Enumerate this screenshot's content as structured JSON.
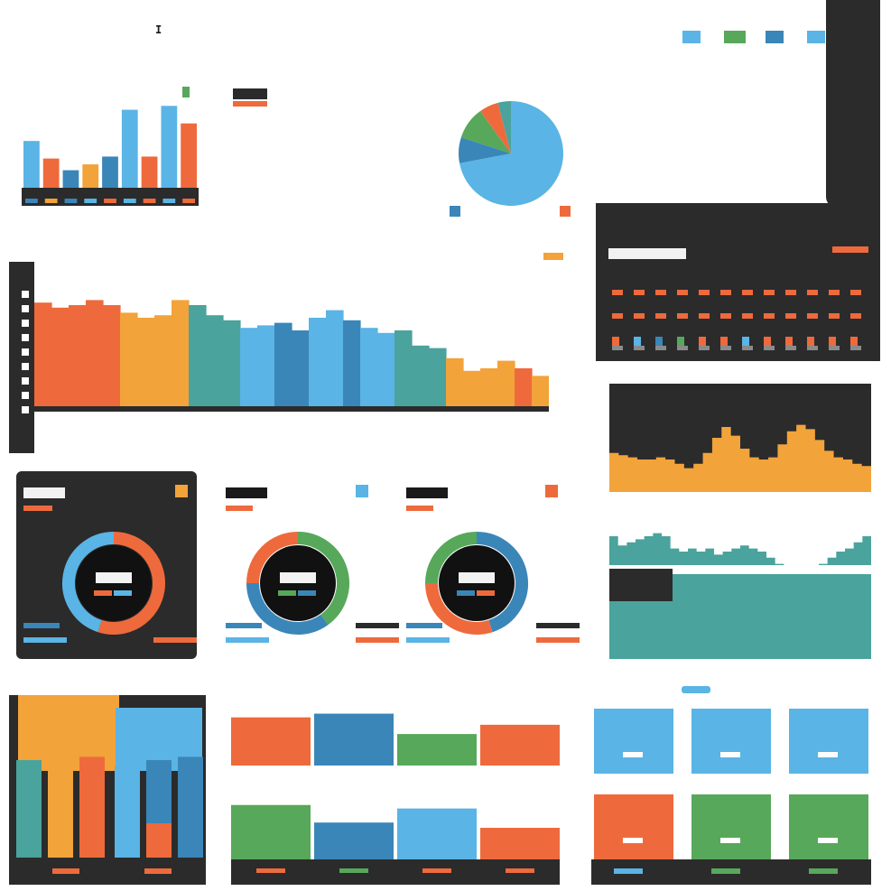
{
  "colors": {
    "blue": "#5ab4e5",
    "orange": "#ee6a3c",
    "green": "#57a85a",
    "amber": "#f2a33a",
    "teal": "#4aa39c",
    "navy": "#3a86b8",
    "dark": "#2b2b2b",
    "gray": "#8a8a8a"
  },
  "header": {
    "marker": "I",
    "legend_swatches": [
      "#5ab4e5",
      "#57a85a",
      "#3a86b8",
      "#5ab4e5",
      "#5ab4e5"
    ]
  },
  "chart_data": [
    {
      "id": "top-bars",
      "type": "bar",
      "title": "",
      "values": [
        48,
        30,
        18,
        24,
        32,
        80,
        32,
        84,
        66
      ],
      "colors": [
        "#5ab4e5",
        "#ee6a3c",
        "#3a86b8",
        "#f2a33a",
        "#3a86b8",
        "#5ab4e5",
        "#ee6a3c",
        "#5ab4e5",
        "#ee6a3c"
      ],
      "ylim": [
        0,
        100
      ]
    },
    {
      "id": "top-pie",
      "type": "pie",
      "title": "",
      "values": [
        72,
        8,
        10,
        6,
        4
      ],
      "colors": [
        "#5ab4e5",
        "#3a86b8",
        "#57a85a",
        "#ee6a3c",
        "#4aa39c"
      ]
    },
    {
      "id": "wide-area",
      "type": "bar",
      "title": "",
      "values": [
        82,
        78,
        80,
        84,
        80,
        74,
        70,
        72,
        84,
        80,
        72,
        68,
        62,
        64,
        66,
        60,
        70,
        76,
        68,
        62,
        58,
        60,
        48,
        46,
        38,
        28,
        30,
        36,
        30,
        24
      ],
      "colors": [
        "#ee6a3c",
        "#ee6a3c",
        "#ee6a3c",
        "#ee6a3c",
        "#ee6a3c",
        "#f2a33a",
        "#f2a33a",
        "#f2a33a",
        "#f2a33a",
        "#4aa39c",
        "#4aa39c",
        "#4aa39c",
        "#5ab4e5",
        "#5ab4e5",
        "#3a86b8",
        "#3a86b8",
        "#5ab4e5",
        "#5ab4e5",
        "#3a86b8",
        "#5ab4e5",
        "#5ab4e5",
        "#4aa39c",
        "#4aa39c",
        "#4aa39c",
        "#f2a33a",
        "#f2a33a",
        "#f2a33a",
        "#f2a33a",
        "#ee6a3c",
        "#f2a33a"
      ],
      "ylim": [
        0,
        100
      ]
    },
    {
      "id": "right-dots",
      "type": "scatter",
      "title": "",
      "rows": [
        [
          "#ee6a3c",
          "#ee6a3c",
          "#ee6a3c",
          "#ee6a3c",
          "#ee6a3c",
          "#ee6a3c",
          "#ee6a3c",
          "#ee6a3c",
          "#ee6a3c",
          "#ee6a3c",
          "#ee6a3c",
          "#ee6a3c"
        ],
        [
          "#ee6a3c",
          "#ee6a3c",
          "#ee6a3c",
          "#ee6a3c",
          "#ee6a3c",
          "#ee6a3c",
          "#ee6a3c",
          "#ee6a3c",
          "#ee6a3c",
          "#ee6a3c",
          "#ee6a3c",
          "#ee6a3c"
        ],
        [
          "#ee6a3c",
          "#5ab4e5",
          "#3a86b8",
          "#57a85a",
          "#ee6a3c",
          "#ee6a3c",
          "#5ab4e5",
          "#ee6a3c",
          "#ee6a3c",
          "#ee6a3c",
          "#ee6a3c",
          "#ee6a3c"
        ]
      ]
    },
    {
      "id": "amber-area",
      "type": "area",
      "title": "",
      "values": [
        36,
        34,
        32,
        30,
        30,
        32,
        30,
        26,
        22,
        26,
        36,
        50,
        60,
        52,
        40,
        32,
        30,
        32,
        44,
        56,
        62,
        58,
        48,
        38,
        32,
        30,
        26,
        24
      ],
      "ylim": [
        0,
        100
      ]
    },
    {
      "id": "teal-area",
      "type": "area",
      "title": "",
      "values": [
        80,
        74,
        76,
        78,
        80,
        82,
        80,
        72,
        70,
        72,
        70,
        72,
        68,
        70,
        72,
        74,
        72,
        70,
        66,
        62,
        60,
        58,
        56,
        58,
        62,
        66,
        70,
        72,
        76,
        80
      ],
      "ylim": [
        0,
        100
      ]
    },
    {
      "id": "gauges",
      "type": "pie",
      "title": "",
      "items": [
        {
          "colors": [
            "#ee6a3c",
            "#5ab4e5"
          ],
          "values": [
            55,
            45
          ],
          "accent": "#f2a33a"
        },
        {
          "colors": [
            "#57a85a",
            "#3a86b8",
            "#ee6a3c"
          ],
          "values": [
            40,
            35,
            25
          ],
          "accent": "#5ab4e5"
        },
        {
          "colors": [
            "#3a86b8",
            "#ee6a3c",
            "#57a85a"
          ],
          "values": [
            45,
            30,
            25
          ],
          "accent": "#ee6a3c"
        }
      ]
    },
    {
      "id": "bottom-left-stack",
      "type": "bar",
      "title": "",
      "values": [
        60,
        58,
        62,
        56,
        60,
        62
      ],
      "colors": [
        "#4aa39c",
        "#f2a33a",
        "#ee6a3c",
        "#5ab4e5",
        "#3a86b8",
        "#3a86b8"
      ],
      "ylim": [
        0,
        100
      ]
    },
    {
      "id": "bottom-mid-bars",
      "type": "bar",
      "title": "",
      "series": [
        {
          "values": [
            52,
            56,
            34,
            44
          ],
          "colors": [
            "#ee6a3c",
            "#3a86b8",
            "#57a85a",
            "#ee6a3c"
          ]
        },
        {
          "values": [
            62,
            42,
            58,
            36
          ],
          "colors": [
            "#57a85a",
            "#3a86b8",
            "#5ab4e5",
            "#ee6a3c"
          ]
        }
      ],
      "ylim": [
        0,
        100
      ]
    },
    {
      "id": "bottom-right-tiles",
      "type": "table",
      "title": "",
      "tiles": [
        "#5ab4e5",
        "#5ab4e5",
        "#5ab4e5",
        "#ee6a3c",
        "#57a85a",
        "#57a85a"
      ]
    }
  ]
}
